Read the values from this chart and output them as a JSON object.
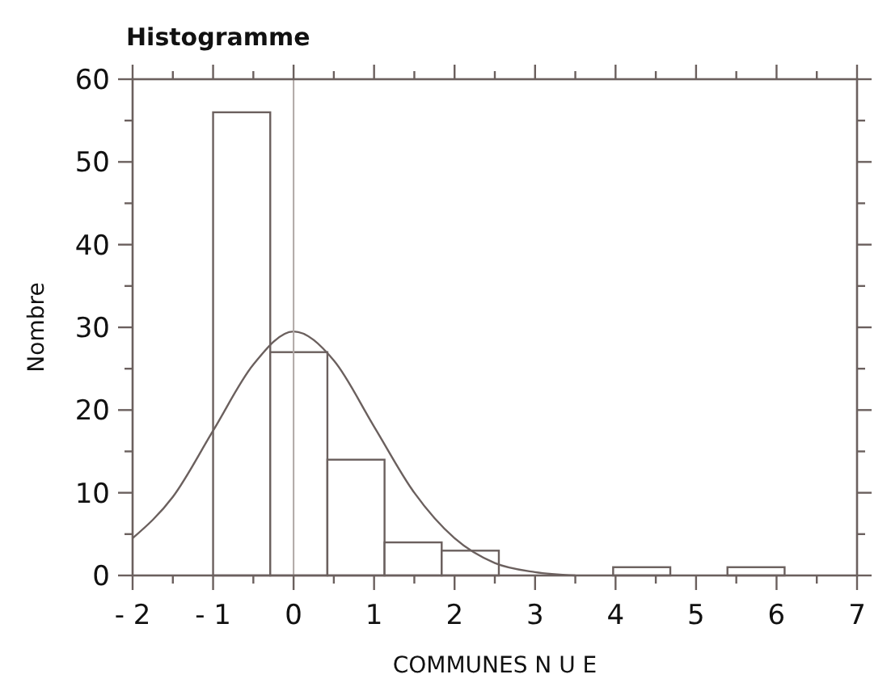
{
  "chart_data": {
    "type": "histogram",
    "title": "Histogramme",
    "xlabel": "COMMUNES N U E",
    "ylabel": "Nombre",
    "bins": [
      -1,
      -0.29,
      0.42,
      1.13,
      1.84,
      2.55,
      3.26,
      3.97,
      4.68,
      5.39,
      6.1
    ],
    "series": [
      {
        "color": "#ffffff",
        "values": [
          56,
          27,
          14,
          4,
          3,
          0,
          0,
          1,
          0,
          1
        ]
      },
      {
        "type": "line",
        "color": "#6b605e",
        "x": [
          -2,
          -1.5,
          -1,
          -0.5,
          0,
          0.5,
          1,
          1.5,
          2,
          2.5,
          3,
          3.5
        ],
        "values": [
          4.5,
          9.5,
          17.5,
          25.5,
          29.5,
          26,
          18,
          10,
          4.5,
          1.5,
          0.4,
          0
        ]
      }
    ],
    "xlim": [
      -2,
      7
    ],
    "ylim": [
      0,
      60
    ],
    "xticks": [
      {
        "value": -2,
        "label": "- 2"
      },
      {
        "value": -1.5,
        "label": null
      },
      {
        "value": -1,
        "label": "- 1"
      },
      {
        "value": -0.5,
        "label": null
      },
      0,
      {
        "value": 0.5,
        "label": null
      },
      1,
      {
        "value": 1.5,
        "label": null
      },
      2,
      {
        "value": 2.5,
        "label": null
      },
      3,
      {
        "value": 3.5,
        "label": null
      },
      4,
      {
        "value": 4.5,
        "label": null
      },
      5,
      {
        "value": 5.5,
        "label": null
      },
      6,
      {
        "value": 6.5,
        "label": null
      },
      7
    ],
    "yticks": [
      0,
      {
        "value": 5,
        "label": null
      },
      10,
      {
        "value": 15,
        "label": null
      },
      20,
      {
        "value": 25,
        "label": null
      },
      30,
      {
        "value": 35,
        "label": null
      },
      40,
      {
        "value": 45,
        "label": null
      },
      50,
      {
        "value": 55,
        "label": null
      },
      60
    ],
    "ref_lines": [
      {
        "axis": "x",
        "value": 0,
        "color": "#b0a8a6"
      }
    ],
    "grid": false,
    "marker": "none",
    "line_style": "solid"
  }
}
